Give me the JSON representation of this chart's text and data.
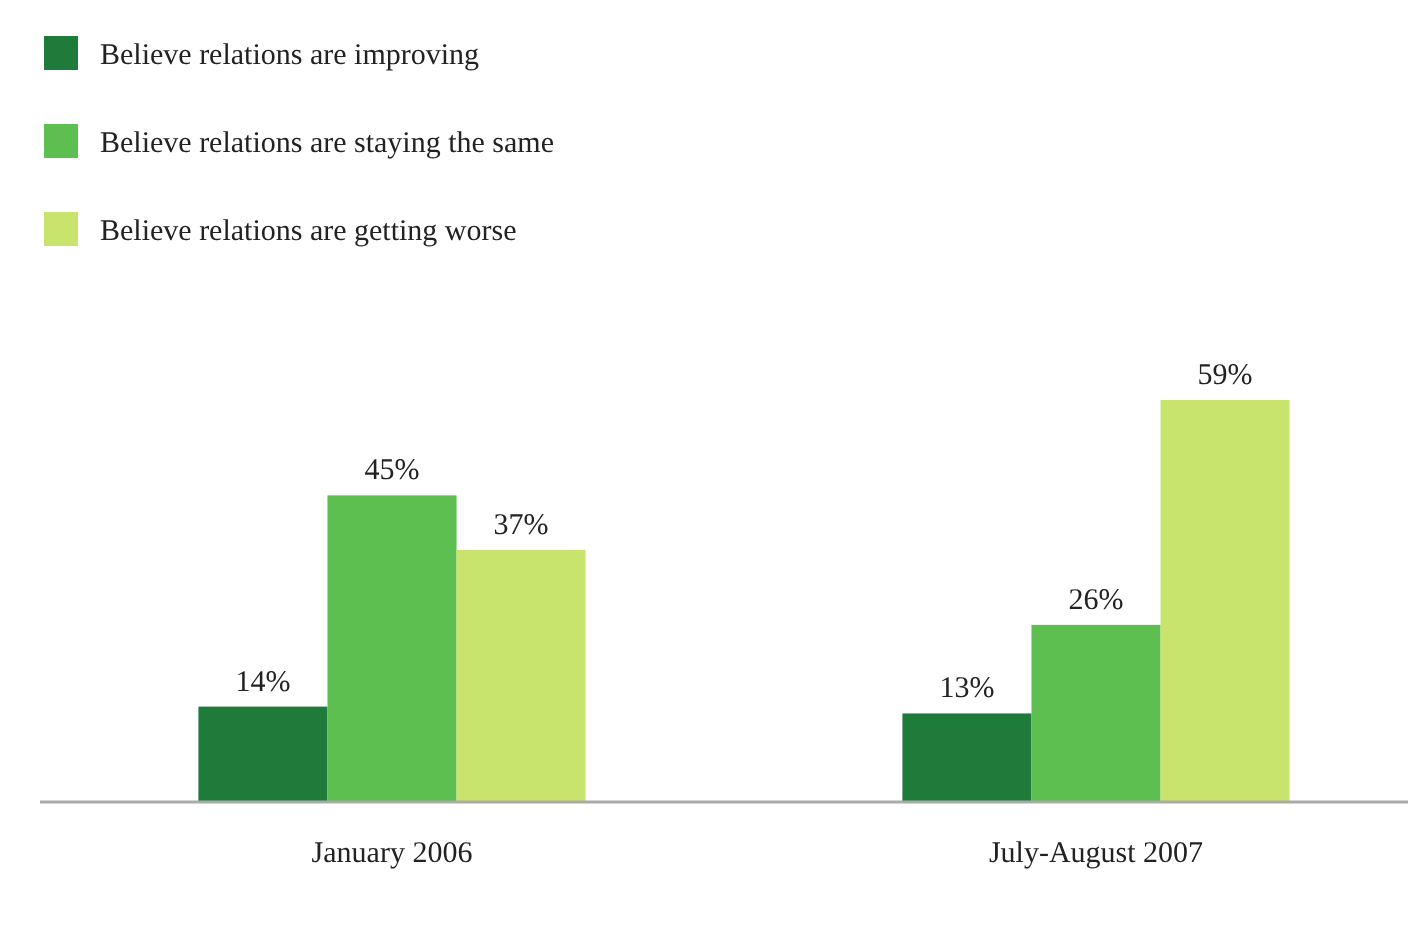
{
  "chart_data": {
    "type": "bar",
    "categories": [
      "January 2006",
      "July-August 2007"
    ],
    "series": [
      {
        "name": "Believe relations are improving",
        "color": "#1e7b3a",
        "values": [
          14,
          13
        ],
        "value_labels": [
          "14%",
          "13%"
        ]
      },
      {
        "name": "Believe relations are staying the same",
        "color": "#5dbf50",
        "values": [
          45,
          26
        ],
        "value_labels": [
          "45%",
          "26%"
        ]
      },
      {
        "name": "Believe relations are getting worse",
        "color": "#c8e46c",
        "values": [
          37,
          59
        ],
        "value_labels": [
          "37%",
          "59%"
        ]
      }
    ],
    "legend": "top left"
  }
}
